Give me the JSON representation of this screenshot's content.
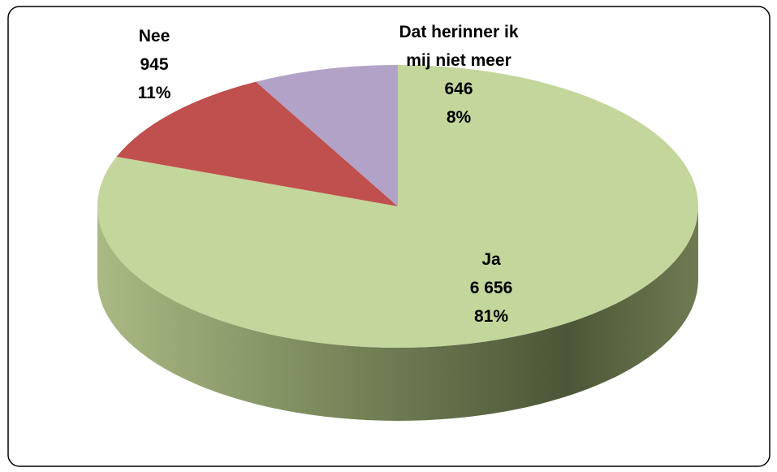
{
  "chart_data": {
    "type": "pie3d",
    "categories": [
      "Ja",
      "Nee",
      "Dat herinner ik mij niet meer"
    ],
    "values": [
      6656,
      945,
      646
    ],
    "value_labels": [
      "6 656",
      "945",
      "646"
    ],
    "percent_labels": [
      "81%",
      "11%",
      "8%"
    ],
    "colors": [
      "#c3d69b",
      "#c0504d",
      "#b2a2c7"
    ]
  }
}
